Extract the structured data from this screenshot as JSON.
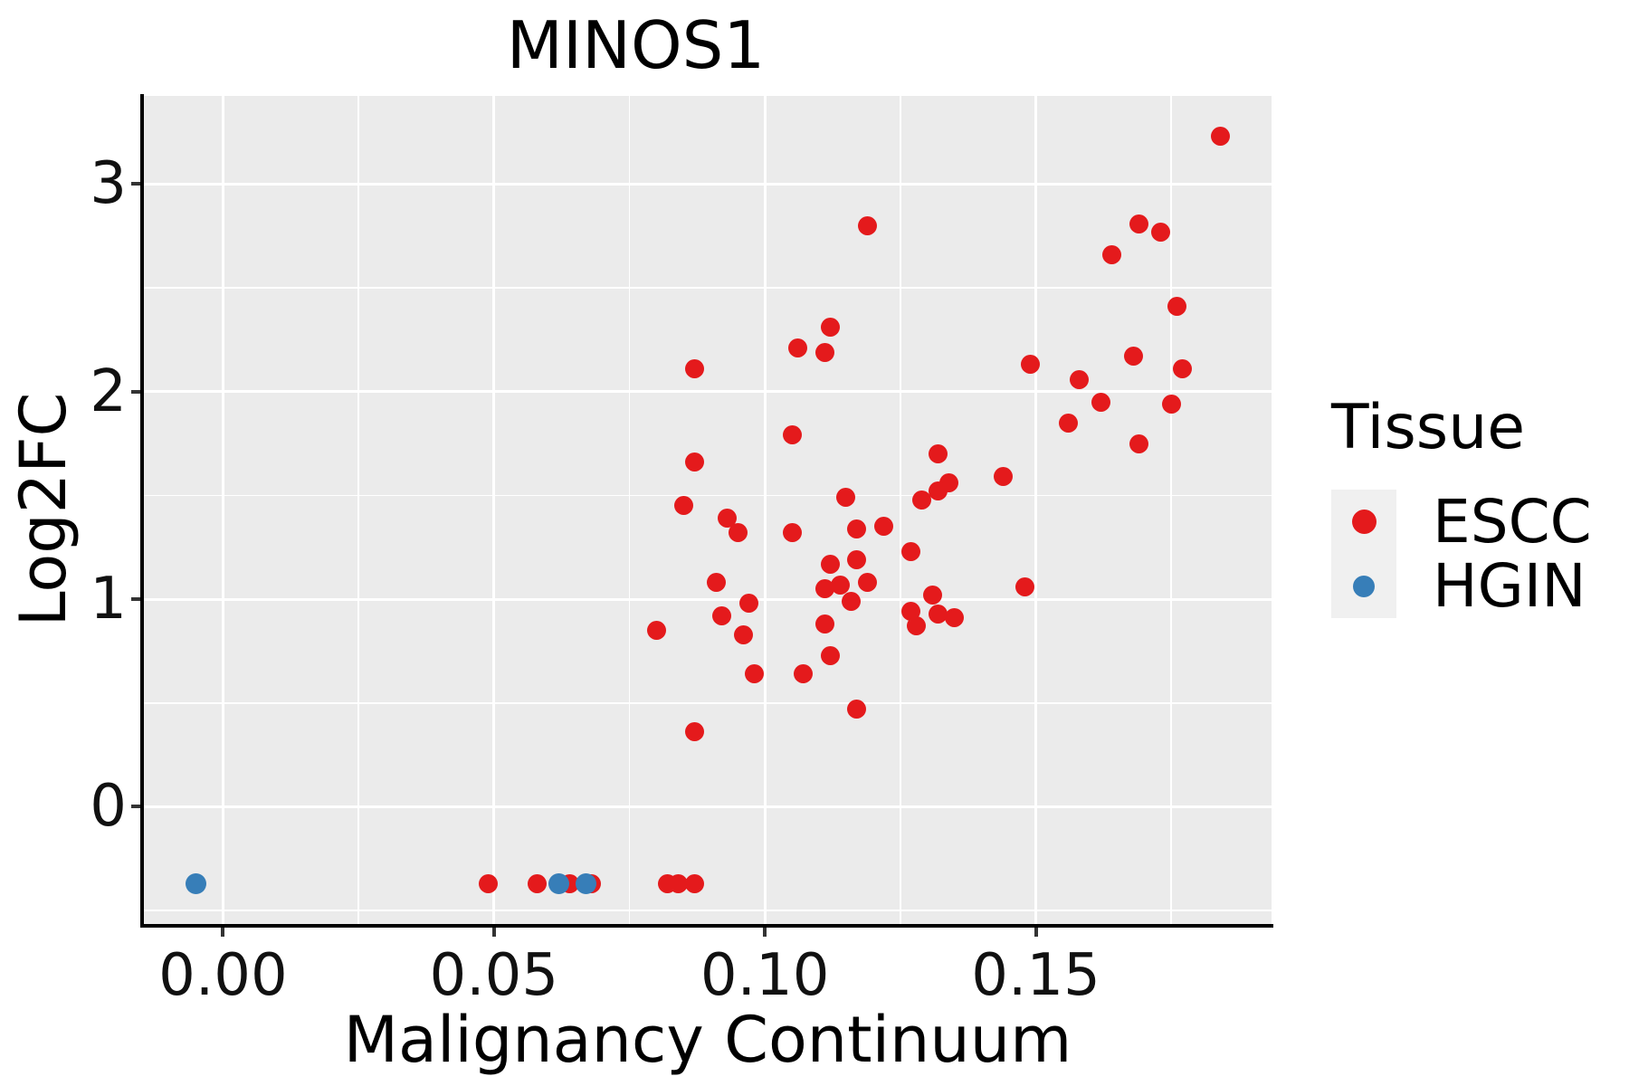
{
  "title": "MINOS1",
  "axes": {
    "x": {
      "label": "Malignancy Continuum",
      "range": [
        -0.0146,
        0.1935
      ],
      "ticks": [
        0.0,
        0.05,
        0.1,
        0.15
      ],
      "tick_labels": [
        "0.00",
        "0.05",
        "0.10",
        "0.15"
      ],
      "minor_ticks": [
        0.025,
        0.075,
        0.125,
        0.175
      ]
    },
    "y": {
      "label": "Log2FC",
      "range": [
        -0.565,
        3.425
      ],
      "ticks": [
        0,
        1,
        2,
        3
      ],
      "tick_labels": [
        "0",
        "1",
        "2",
        "3"
      ],
      "minor_ticks": [
        -0.5,
        0.5,
        1.5,
        2.5
      ]
    }
  },
  "legend": {
    "title": "Tissue",
    "entries": [
      {
        "label": "ESCC",
        "color": "#e41a1c"
      },
      {
        "label": "HGIN",
        "color": "#377eb8"
      }
    ]
  },
  "colors": {
    "panel_bg": "#ebebeb",
    "grid": "#ffffff",
    "axis": "#000000",
    "tick_mark": "#333333",
    "legend_key_bg": "#f0f0f0",
    "escc": "#e41a1c",
    "hgin": "#377eb8"
  },
  "chart_data": {
    "type": "scatter",
    "title": "MINOS1",
    "xlabel": "Malignancy Continuum",
    "ylabel": "Log2FC",
    "xlim": [
      -0.0146,
      0.1935
    ],
    "ylim": [
      -0.565,
      3.425
    ],
    "grid": true,
    "legend_position": "right",
    "series": [
      {
        "name": "ESCC",
        "color": "#e41a1c",
        "size": 21,
        "points": [
          [
            0.184,
            3.23
          ],
          [
            0.119,
            2.8
          ],
          [
            0.169,
            2.81
          ],
          [
            0.173,
            2.77
          ],
          [
            0.164,
            2.66
          ],
          [
            0.176,
            2.41
          ],
          [
            0.112,
            2.31
          ],
          [
            0.106,
            2.21
          ],
          [
            0.111,
            2.19
          ],
          [
            0.168,
            2.17
          ],
          [
            0.149,
            2.13
          ],
          [
            0.177,
            2.11
          ],
          [
            0.087,
            2.11
          ],
          [
            0.158,
            2.06
          ],
          [
            0.162,
            1.95
          ],
          [
            0.175,
            1.94
          ],
          [
            0.156,
            1.85
          ],
          [
            0.105,
            1.79
          ],
          [
            0.169,
            1.75
          ],
          [
            0.132,
            1.7
          ],
          [
            0.087,
            1.66
          ],
          [
            0.144,
            1.59
          ],
          [
            0.134,
            1.56
          ],
          [
            0.132,
            1.52
          ],
          [
            0.115,
            1.49
          ],
          [
            0.129,
            1.48
          ],
          [
            0.085,
            1.45
          ],
          [
            0.093,
            1.39
          ],
          [
            0.122,
            1.35
          ],
          [
            0.117,
            1.34
          ],
          [
            0.105,
            1.32
          ],
          [
            0.095,
            1.32
          ],
          [
            0.127,
            1.23
          ],
          [
            0.117,
            1.19
          ],
          [
            0.112,
            1.17
          ],
          [
            0.091,
            1.08
          ],
          [
            0.119,
            1.08
          ],
          [
            0.114,
            1.07
          ],
          [
            0.111,
            1.05
          ],
          [
            0.131,
            1.02
          ],
          [
            0.148,
            1.06
          ],
          [
            0.116,
            0.99
          ],
          [
            0.097,
            0.98
          ],
          [
            0.127,
            0.94
          ],
          [
            0.132,
            0.93
          ],
          [
            0.092,
            0.92
          ],
          [
            0.135,
            0.91
          ],
          [
            0.111,
            0.88
          ],
          [
            0.128,
            0.87
          ],
          [
            0.08,
            0.85
          ],
          [
            0.096,
            0.83
          ],
          [
            0.112,
            0.73
          ],
          [
            0.098,
            0.64
          ],
          [
            0.107,
            0.64
          ],
          [
            0.117,
            0.47
          ],
          [
            0.087,
            0.36
          ],
          [
            0.049,
            -0.37
          ],
          [
            0.058,
            -0.37
          ],
          [
            0.064,
            -0.37
          ],
          [
            0.068,
            -0.37
          ],
          [
            0.082,
            -0.37
          ],
          [
            0.084,
            -0.37
          ],
          [
            0.087,
            -0.37
          ]
        ]
      },
      {
        "name": "HGIN",
        "color": "#377eb8",
        "size": 23,
        "points": [
          [
            -0.005,
            -0.37
          ],
          [
            0.062,
            -0.37
          ],
          [
            0.067,
            -0.37
          ]
        ]
      }
    ]
  }
}
